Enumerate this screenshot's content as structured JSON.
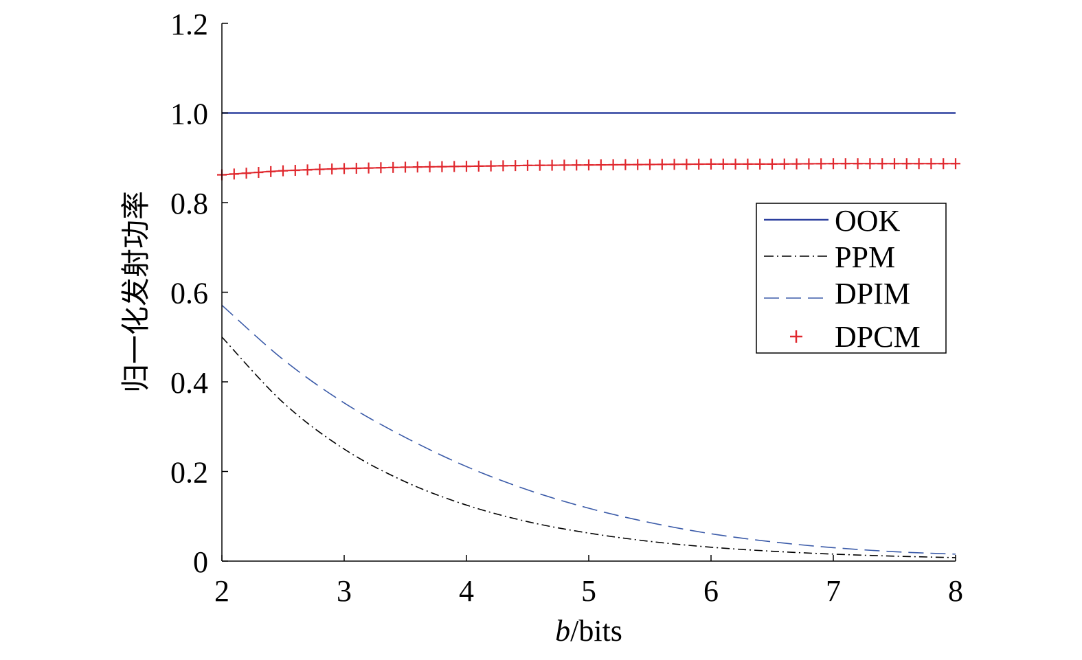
{
  "chart_data": {
    "type": "line",
    "title": "",
    "xlabel_italic": "b",
    "xlabel_rest": "/bits",
    "ylabel": "归一化发射功率",
    "xlim": [
      2,
      8
    ],
    "ylim": [
      0,
      1.2
    ],
    "x_ticks": [
      2,
      3,
      4,
      5,
      6,
      7,
      8
    ],
    "x_tick_labels": [
      "2",
      "3",
      "4",
      "5",
      "6",
      "7",
      "8"
    ],
    "y_ticks": [
      0,
      0.2,
      0.4,
      0.6,
      0.8,
      1.0,
      1.2
    ],
    "y_tick_labels": [
      "0",
      "0.2",
      "0.4",
      "0.6",
      "0.8",
      "1.0",
      "1.2"
    ],
    "legend_position": "right-center",
    "series": [
      {
        "name": "OOK",
        "style": "solid",
        "color": "#2b3f9e",
        "x": [
          2,
          3,
          4,
          5,
          6,
          7,
          8
        ],
        "values": [
          1.0,
          1.0,
          1.0,
          1.0,
          1.0,
          1.0,
          1.0
        ]
      },
      {
        "name": "PPM",
        "style": "dashdot",
        "color": "#000000",
        "x": [
          2,
          2.5,
          3,
          3.5,
          4,
          4.5,
          5,
          5.5,
          6,
          6.5,
          7,
          7.5,
          8
        ],
        "values": [
          0.5,
          0.354,
          0.25,
          0.177,
          0.125,
          0.088,
          0.0625,
          0.044,
          0.031,
          0.022,
          0.0156,
          0.011,
          0.0078
        ]
      },
      {
        "name": "DPIM",
        "style": "dashed",
        "color": "#3a5aa8",
        "x": [
          2,
          2.5,
          3,
          3.5,
          4,
          4.5,
          5,
          5.5,
          6,
          6.5,
          7,
          7.5,
          8
        ],
        "values": [
          0.571,
          0.45,
          0.353,
          0.276,
          0.211,
          0.159,
          0.118,
          0.086,
          0.061,
          0.043,
          0.03,
          0.021,
          0.0155
        ]
      },
      {
        "name": "DPCM",
        "style": "marker-plus",
        "color": "#e0282e",
        "x": [
          2,
          2.5,
          3,
          3.5,
          4,
          4.5,
          5,
          5.5,
          6,
          6.5,
          7,
          7.5,
          8
        ],
        "values": [
          0.862,
          0.871,
          0.876,
          0.879,
          0.881,
          0.883,
          0.884,
          0.885,
          0.886,
          0.886,
          0.887,
          0.887,
          0.887
        ]
      }
    ]
  }
}
